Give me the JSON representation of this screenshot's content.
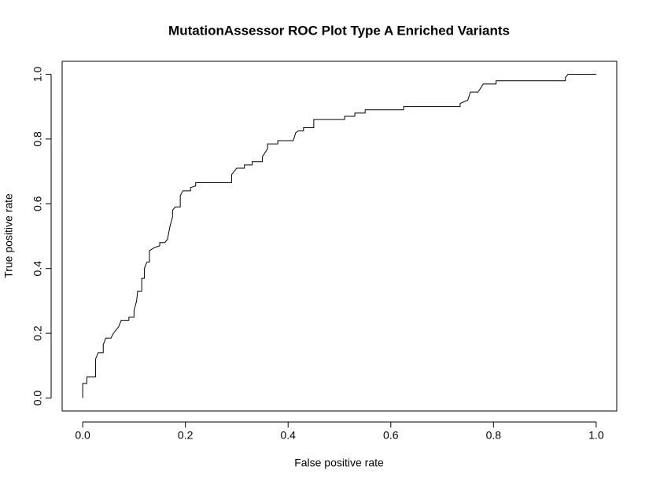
{
  "chart_data": {
    "type": "line",
    "title": "MutationAssessor ROC Plot Type A Enriched Variants",
    "x_label": "False positive rate",
    "y_label": "True positive rate",
    "xlim": [
      -0.04,
      1.04
    ],
    "ylim": [
      -0.04,
      1.04
    ],
    "xticks": [
      {
        "value": 0,
        "label": "0.0"
      },
      {
        "value": 0.2,
        "label": "0.2"
      },
      {
        "value": 0.4,
        "label": "0.4"
      },
      {
        "value": 0.6,
        "label": "0.6"
      },
      {
        "value": 0.8,
        "label": "0.8"
      },
      {
        "value": 1,
        "label": "1.0"
      }
    ],
    "yticks": [
      {
        "value": 0,
        "label": "0.0"
      },
      {
        "value": 0.2,
        "label": "0.2"
      },
      {
        "value": 0.4,
        "label": "0.4"
      },
      {
        "value": 0.6,
        "label": "0.6"
      },
      {
        "value": 0.8,
        "label": "0.8"
      },
      {
        "value": 1,
        "label": "1.0"
      }
    ],
    "grid": false,
    "color": "#000000",
    "x": [
      0,
      0,
      0.008,
      0.008,
      0.025,
      0.025,
      0.03,
      0.04,
      0.04,
      0.045,
      0.055,
      0.06,
      0.065,
      0.07,
      0.075,
      0.09,
      0.09,
      0.1,
      0.1,
      0.105,
      0.107,
      0.115,
      0.115,
      0.12,
      0.12,
      0.125,
      0.13,
      0.13,
      0.14,
      0.15,
      0.15,
      0.16,
      0.165,
      0.17,
      0.175,
      0.175,
      0.18,
      0.19,
      0.19,
      0.195,
      0.21,
      0.21,
      0.22,
      0.22,
      0.29,
      0.29,
      0.3,
      0.315,
      0.315,
      0.33,
      0.33,
      0.35,
      0.35,
      0.36,
      0.36,
      0.38,
      0.38,
      0.41,
      0.415,
      0.42,
      0.43,
      0.43,
      0.45,
      0.45,
      0.51,
      0.51,
      0.53,
      0.53,
      0.55,
      0.55,
      0.625,
      0.625,
      0.735,
      0.735,
      0.75,
      0.755,
      0.77,
      0.78,
      0.805,
      0.805,
      0.94,
      0.94,
      0.945,
      1
    ],
    "y": [
      0,
      0.045,
      0.045,
      0.065,
      0.065,
      0.12,
      0.14,
      0.14,
      0.165,
      0.185,
      0.185,
      0.2,
      0.21,
      0.22,
      0.24,
      0.24,
      0.25,
      0.25,
      0.27,
      0.3,
      0.33,
      0.33,
      0.37,
      0.37,
      0.4,
      0.42,
      0.42,
      0.455,
      0.465,
      0.47,
      0.48,
      0.48,
      0.49,
      0.53,
      0.56,
      0.58,
      0.59,
      0.59,
      0.625,
      0.64,
      0.64,
      0.65,
      0.655,
      0.665,
      0.665,
      0.69,
      0.71,
      0.71,
      0.72,
      0.72,
      0.73,
      0.73,
      0.745,
      0.77,
      0.785,
      0.785,
      0.795,
      0.795,
      0.82,
      0.825,
      0.825,
      0.835,
      0.835,
      0.86,
      0.86,
      0.87,
      0.87,
      0.88,
      0.88,
      0.89,
      0.89,
      0.9,
      0.9,
      0.91,
      0.92,
      0.945,
      0.945,
      0.97,
      0.97,
      0.98,
      0.98,
      0.99,
      1,
      1
    ]
  }
}
